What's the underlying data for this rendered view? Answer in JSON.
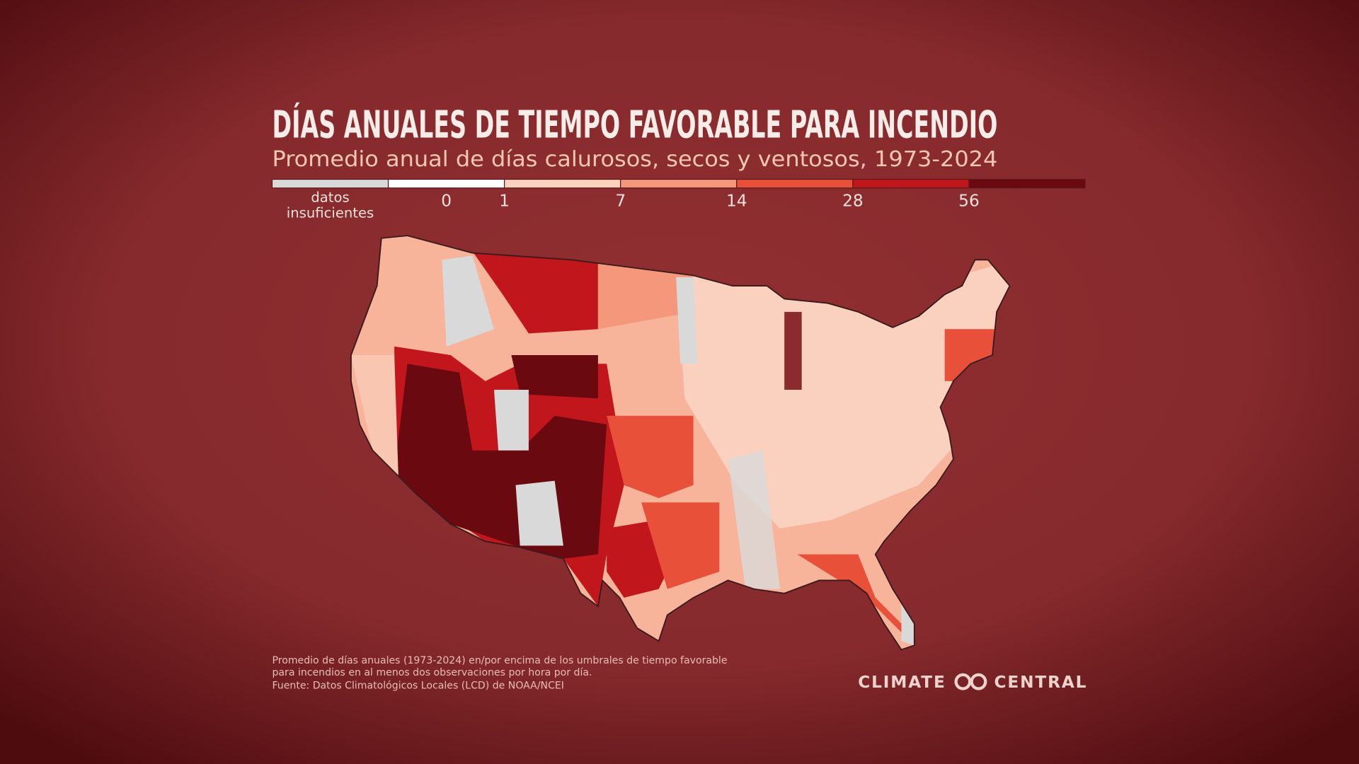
{
  "title": "DÍAS ANUALES DE TIEMPO FAVORABLE PARA INCENDIO",
  "subtitle": "Promedio anual de días calurosos, secos y ventosos, 1973-2024",
  "legend": {
    "na_label": "datos insuficientes",
    "zero": 0,
    "thresholds": [
      1,
      7,
      14,
      28,
      56
    ],
    "colors": [
      "#d9d9d9",
      "#ffffff",
      "#fcd2bf",
      "#f5977a",
      "#e8503a",
      "#c2161d",
      "#6a0a10"
    ]
  },
  "footnote": [
    "Promedio de días anuales (1973-2024) en/por encima de los umbrales de tiempo favorable",
    "para incendios en al menos dos observaciones por hora por día.",
    "Fuente: Datos Climatológicos Locales (LCD) de NOAA/NCEI"
  ],
  "logo": {
    "left": "CLIMATE",
    "right": "CENTRAL"
  }
}
